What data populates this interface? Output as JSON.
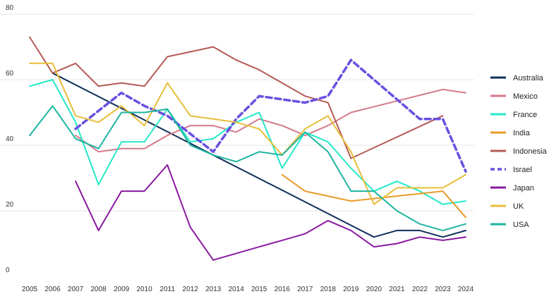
{
  "chart_data": {
    "type": "line",
    "title": "",
    "xlabel": "",
    "ylabel": "",
    "ylim": [
      0,
      80
    ],
    "yticks": [
      0,
      20,
      40,
      60,
      80
    ],
    "grid": "horizontal",
    "legend_position": "right",
    "x": [
      "2005",
      "2006",
      "2007",
      "2008",
      "2009",
      "2010",
      "2011",
      "2012",
      "2013",
      "2014",
      "2015",
      "2016",
      "2017",
      "2018",
      "2019",
      "2020",
      "2021",
      "2022",
      "2023",
      "2024"
    ],
    "series": [
      {
        "name": "Australia",
        "color": "#0f2f5a",
        "dash": false,
        "values": [
          null,
          62,
          null,
          null,
          null,
          null,
          null,
          null,
          null,
          null,
          null,
          null,
          null,
          null,
          null,
          12,
          14,
          14,
          12,
          14
        ]
      },
      {
        "name": "Mexico",
        "color": "#d4798a",
        "dash": false,
        "values": [
          null,
          null,
          43,
          38,
          39,
          39,
          43,
          46,
          46,
          44,
          48,
          46,
          43,
          46,
          50,
          null,
          null,
          null,
          57,
          56
        ]
      },
      {
        "name": "France",
        "color": "#25e8c8",
        "dash": false,
        "values": [
          58,
          60,
          47,
          28,
          41,
          41,
          51,
          41,
          42,
          47,
          50,
          33,
          44,
          41,
          33,
          26,
          29,
          26,
          22,
          23
        ]
      },
      {
        "name": "India",
        "color": "#e89b2a",
        "dash": false,
        "values": [
          null,
          null,
          null,
          null,
          null,
          null,
          null,
          null,
          null,
          null,
          null,
          31,
          26,
          null,
          23,
          null,
          null,
          null,
          26,
          18
        ]
      },
      {
        "name": "Indonesia",
        "color": "#b55a57",
        "dash": false,
        "values": [
          73,
          62,
          65,
          58,
          59,
          58,
          67,
          null,
          70,
          66,
          63,
          null,
          55,
          53,
          36,
          null,
          null,
          null,
          49,
          null
        ]
      },
      {
        "name": "Israel",
        "color": "#6a4fe0",
        "dash": true,
        "values": [
          null,
          null,
          45,
          null,
          56,
          52,
          49,
          null,
          38,
          48,
          55,
          54,
          53,
          55,
          66,
          60,
          54,
          48,
          48,
          32
        ]
      },
      {
        "name": "Japan",
        "color": "#8a1aa0",
        "dash": false,
        "values": [
          null,
          null,
          29,
          14,
          26,
          26,
          34,
          15,
          5,
          7,
          9,
          11,
          13,
          17,
          14,
          9,
          10,
          12,
          11,
          12
        ]
      },
      {
        "name": "UK",
        "color": "#e8be3a",
        "dash": false,
        "values": [
          65,
          65,
          49,
          47,
          52,
          46,
          59,
          49,
          48,
          47,
          45,
          37,
          45,
          49,
          38,
          22,
          27,
          27,
          27,
          31
        ]
      },
      {
        "name": "USA",
        "color": "#1db5a0",
        "dash": false,
        "values": [
          43,
          52,
          42,
          39,
          50,
          50,
          51,
          40,
          37,
          35,
          38,
          37,
          44,
          38,
          26,
          26,
          20,
          16,
          14,
          16
        ]
      }
    ]
  }
}
